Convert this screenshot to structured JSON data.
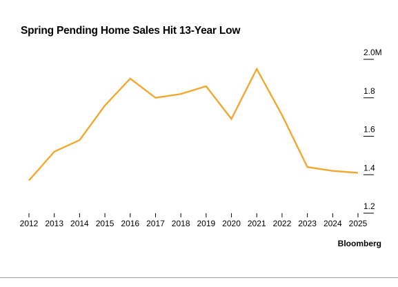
{
  "chart_data": {
    "type": "line",
    "title": "Spring Pending Home Sales Hit 13-Year Low",
    "source": "Bloomberg",
    "xlabel": "",
    "ylabel": "",
    "x": [
      2012,
      2013,
      2014,
      2015,
      2016,
      2017,
      2018,
      2019,
      2020,
      2021,
      2022,
      2023,
      2024,
      2025
    ],
    "x_ticks": [
      "2012",
      "2013",
      "2014",
      "2015",
      "2016",
      "2017",
      "2018",
      "2019",
      "2020",
      "2021",
      "2022",
      "2023",
      "2024",
      "2025"
    ],
    "series": [
      {
        "values": [
          1.37,
          1.52,
          1.58,
          1.76,
          1.9,
          1.8,
          1.82,
          1.86,
          1.69,
          1.95,
          1.71,
          1.44,
          1.42,
          1.41
        ]
      }
    ],
    "ylim": [
      1.2,
      2.0
    ],
    "y_ticks": [
      {
        "value": 2.0,
        "label": "2.0M"
      },
      {
        "value": 1.8,
        "label": "1.8"
      },
      {
        "value": 1.6,
        "label": "1.6"
      },
      {
        "value": 1.4,
        "label": "1.4"
      },
      {
        "value": 1.2,
        "label": "1.2"
      }
    ],
    "y_axis_position": "right",
    "grid": false,
    "line_color": "#f0a830",
    "tick_color": "#000000"
  }
}
